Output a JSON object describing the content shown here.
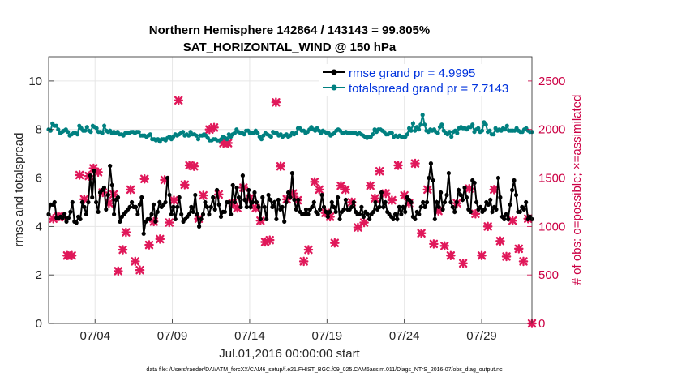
{
  "chart_data": {
    "type": "line",
    "title": "Northern Hemisphere 142864 / 143143 = 99.805%",
    "subtitle": "SAT_HORIZONTAL_WIND @ 150 hPa",
    "xlabel": "Jul.01,2016 00:00:00 start",
    "ylabel": "rmse and totalspread",
    "y2label": "# of obs: o=possible; ×=assimilated",
    "footnote": "data file: /Users/raeder/DAI/ATM_forcXX/CAM6_setup/f.e21.FHIST_BGC.f09_025.CAM6assim.011/Diags_NTrS_2016-07/obs_diag_output.nc",
    "x_range_days": [
      1,
      32.25
    ],
    "x_ticks": [
      {
        "day": 4,
        "label": "07/04"
      },
      {
        "day": 9,
        "label": "07/09"
      },
      {
        "day": 14,
        "label": "07/14"
      },
      {
        "day": 19,
        "label": "07/19"
      },
      {
        "day": 24,
        "label": "07/24"
      },
      {
        "day": 29,
        "label": "07/29"
      }
    ],
    "ylim": [
      0,
      11
    ],
    "y_ticks": [
      "0",
      "2",
      "4",
      "6",
      "8",
      "10"
    ],
    "y2lim": [
      0,
      2750
    ],
    "y2_ticks": [
      "0",
      "500",
      "1000",
      "1500",
      "2000",
      "2500"
    ],
    "legend": [
      {
        "name": "rmse grand pr = 4.9995",
        "color": "#000000"
      },
      {
        "name": "totalspread grand pr = 7.7143",
        "color": "#008080"
      }
    ],
    "series": [
      {
        "name": "rmse",
        "axis": "left",
        "color": "#000000",
        "values": [
          4.5,
          4.9,
          4.9,
          5.0,
          4.35,
          4.35,
          4.4,
          4.35,
          4.5,
          4.2,
          4.35,
          4.6,
          5.0,
          4.2,
          4.15,
          4.4,
          4.3,
          5.0,
          4.8,
          4.5,
          5.0,
          6.1,
          5.2,
          6.3,
          5.0,
          4.6,
          5.4,
          5.5,
          5.6,
          4.7,
          5.3,
          6.5,
          5.7,
          4.5,
          5.1,
          5.2,
          4.2,
          4.4,
          4.5,
          4.6,
          4.7,
          4.8,
          5.0,
          4.8,
          4.8,
          4.5,
          4.9,
          5.2,
          3.7,
          4.2,
          4.3,
          4.3,
          4.5,
          4.9,
          4.2,
          4.6,
          5.0,
          4.8,
          4.9,
          5.0,
          6.0,
          5.3,
          4.5,
          4.8,
          4.3,
          4.8,
          5.2,
          4.5,
          4.2,
          4.3,
          4.4,
          4.5,
          4.8,
          4.6,
          5.3,
          4.5,
          4.0,
          4.3,
          4.5,
          5.0,
          4.8,
          4.5,
          4.8,
          5.2,
          4.7,
          5.5,
          4.9,
          4.4,
          4.6,
          4.6,
          5.0,
          5.0,
          4.5,
          5.7,
          5.0,
          5.6,
          5.2,
          4.8,
          6.1,
          5.1,
          4.8,
          5.5,
          4.8,
          5.0,
          5.4,
          5.0,
          4.8,
          4.3,
          5.2,
          4.8,
          4.3,
          5.3,
          5.1,
          4.8,
          5.0,
          4.3,
          5.1,
          4.7,
          4.8,
          4.2,
          5.0,
          5.4,
          5.2,
          6.2,
          5.1,
          4.7,
          5.1,
          4.6,
          4.5,
          4.5,
          4.7,
          4.5,
          4.7,
          4.8,
          5.0,
          4.6,
          4.5,
          4.7,
          5.3,
          4.8,
          4.6,
          4.4,
          4.6,
          5.0,
          4.8,
          4.6,
          5.2,
          4.3,
          4.6,
          4.7,
          5.1,
          4.7,
          4.7,
          4.8,
          5.0,
          4.6,
          4.5,
          4.5,
          4.8,
          4.4,
          4.6,
          4.5,
          4.3,
          4.5,
          4.6,
          5.0,
          4.7,
          4.8,
          5.4,
          4.8,
          5.0,
          4.6,
          4.5,
          4.4,
          4.3,
          4.5,
          4.3,
          4.8,
          4.5,
          4.8,
          4.6,
          5.2,
          5.1,
          5.0,
          4.4,
          4.3,
          4.6,
          4.5,
          4.8,
          5.0,
          4.8,
          5.0,
          6.0,
          6.6,
          5.9,
          4.3,
          5.0,
          4.8,
          5.4,
          4.7,
          5.0,
          5.3,
          6.2,
          5.0,
          4.8,
          4.6,
          5.0,
          5.5,
          5.3,
          5.1,
          5.6,
          5.2,
          4.7,
          4.6,
          5.9,
          5.8,
          5.0,
          4.7,
          4.8,
          4.6,
          4.7,
          5.0,
          4.9,
          5.1,
          4.6,
          4.8,
          4.7,
          6.0,
          5.2,
          4.4,
          4.3,
          4.5,
          4.3,
          4.9,
          5.5,
          5.9,
          5.3,
          4.6,
          4.6,
          4.8,
          4.7,
          5.0,
          4.3,
          4.4,
          4.3
        ]
      },
      {
        "name": "totalspread",
        "axis": "left",
        "color": "#008080",
        "values": [
          8.0,
          7.95,
          8.25,
          8.15,
          8.15,
          8.0,
          7.85,
          7.9,
          7.95,
          8.0,
          7.9,
          7.75,
          7.8,
          7.85,
          7.85,
          7.8,
          8.15,
          8.05,
          7.95,
          7.95,
          8.1,
          7.95,
          7.9,
          8.15,
          8.1,
          8.05,
          7.9,
          7.9,
          7.85,
          8.15,
          7.95,
          7.9,
          7.95,
          7.85,
          7.9,
          7.85,
          7.9,
          7.8,
          7.8,
          7.75,
          7.85,
          7.85,
          7.85,
          7.9,
          7.9,
          7.85,
          7.9,
          7.9,
          7.75,
          7.75,
          7.75,
          7.7,
          7.75,
          7.8,
          7.6,
          7.6,
          7.55,
          7.6,
          7.5,
          7.6,
          7.6,
          7.55,
          7.65,
          7.7,
          7.6,
          7.7,
          7.8,
          7.75,
          7.8,
          7.85,
          7.9,
          7.75,
          7.8,
          7.75,
          7.9,
          7.8,
          7.8,
          7.75,
          7.6,
          7.75,
          7.75,
          7.8,
          7.75,
          7.65,
          7.55,
          7.55,
          7.6,
          7.6,
          7.55,
          7.55,
          7.6,
          7.7,
          7.65,
          7.6,
          7.8,
          7.7,
          7.8,
          7.85,
          8.0,
          7.9,
          7.85,
          7.85,
          7.8,
          7.95,
          7.95,
          7.85,
          7.85,
          7.85,
          7.95,
          7.85,
          7.7,
          7.6,
          7.75,
          7.85,
          7.8,
          7.75,
          7.7,
          7.9,
          7.85,
          7.85,
          7.75,
          7.8,
          7.7,
          7.75,
          7.8,
          7.7,
          7.75,
          7.85,
          7.8,
          7.85,
          8.05,
          8.05,
          7.95,
          7.95,
          7.85,
          7.9,
          8.0,
          8.1,
          8.0,
          7.95,
          8.05,
          7.95,
          7.85,
          7.95,
          7.9,
          7.85,
          7.85,
          7.75,
          7.8,
          7.85,
          7.95,
          8.0,
          7.95,
          7.85,
          7.85,
          7.9,
          7.85,
          7.85,
          7.85,
          7.85,
          7.85,
          7.8,
          7.85,
          7.8,
          7.75,
          7.7,
          7.65,
          7.7,
          7.7,
          7.8,
          8.0,
          7.9,
          8.0,
          8.0,
          7.95,
          7.9,
          7.8,
          7.8,
          7.85,
          7.85,
          7.7,
          7.75,
          7.7,
          7.75,
          7.7,
          7.7,
          7.7,
          7.8,
          8.05,
          7.95,
          8.25,
          7.95,
          8.1,
          8.0,
          8.2,
          8.6,
          8.2,
          7.95,
          7.9,
          8.0,
          7.95,
          8.0,
          7.9,
          7.85,
          8.1,
          8.2,
          7.95,
          7.85,
          7.8,
          7.9,
          7.7,
          7.9,
          7.95,
          7.85,
          8.05,
          8.1,
          8.05,
          8.05,
          8.0,
          8.1,
          8.1,
          8.2,
          7.9,
          8.0,
          8.05,
          7.9,
          7.95,
          8.3,
          8.2,
          7.9,
          7.95,
          7.8,
          7.8,
          8.05,
          7.95,
          8.0,
          7.95,
          8.05,
          8.0,
          8.15,
          7.95,
          7.95,
          7.95,
          7.95,
          8.05,
          7.95,
          7.9,
          7.9,
          8.0,
          8.05,
          7.95,
          7.9,
          7.9
        ]
      },
      {
        "name": "# of obs (assimilated)",
        "axis": "right",
        "color": "#e0185a",
        "points": [
          [
            1.3,
            1080
          ],
          [
            1.6,
            1100
          ],
          [
            1.9,
            1100
          ],
          [
            2.2,
            700
          ],
          [
            2.5,
            700
          ],
          [
            3.0,
            1530
          ],
          [
            3.3,
            1280
          ],
          [
            3.6,
            1520
          ],
          [
            3.9,
            1600
          ],
          [
            4.2,
            1560
          ],
          [
            4.5,
            1350
          ],
          [
            4.9,
            1240
          ],
          [
            5.2,
            1330
          ],
          [
            5.5,
            540
          ],
          [
            5.8,
            760
          ],
          [
            6.0,
            940
          ],
          [
            6.3,
            1380
          ],
          [
            6.6,
            640
          ],
          [
            6.9,
            550
          ],
          [
            7.2,
            1490
          ],
          [
            7.5,
            810
          ],
          [
            7.8,
            1050
          ],
          [
            8.2,
            870
          ],
          [
            8.5,
            1480
          ],
          [
            8.8,
            1040
          ],
          [
            9.1,
            1270
          ],
          [
            9.4,
            2300
          ],
          [
            9.8,
            1430
          ],
          [
            10.1,
            1630
          ],
          [
            10.4,
            1620
          ],
          [
            10.7,
            1080
          ],
          [
            11.0,
            1320
          ],
          [
            11.4,
            2000
          ],
          [
            11.7,
            2020
          ],
          [
            12.0,
            1330
          ],
          [
            12.3,
            1860
          ],
          [
            12.6,
            1860
          ],
          [
            12.9,
            1240
          ],
          [
            13.2,
            1190
          ],
          [
            13.6,
            1400
          ],
          [
            14.0,
            1290
          ],
          [
            14.4,
            1190
          ],
          [
            14.7,
            1060
          ],
          [
            15.0,
            840
          ],
          [
            15.3,
            860
          ],
          [
            15.7,
            2280
          ],
          [
            16.0,
            1620
          ],
          [
            16.4,
            1280
          ],
          [
            16.8,
            1340
          ],
          [
            17.1,
            1270
          ],
          [
            17.5,
            640
          ],
          [
            17.8,
            760
          ],
          [
            18.2,
            1460
          ],
          [
            18.5,
            1380
          ],
          [
            18.9,
            1140
          ],
          [
            19.2,
            1100
          ],
          [
            19.5,
            830
          ],
          [
            19.9,
            1420
          ],
          [
            20.2,
            1380
          ],
          [
            20.6,
            1250
          ],
          [
            21.0,
            990
          ],
          [
            21.4,
            1040
          ],
          [
            21.8,
            1420
          ],
          [
            22.1,
            1290
          ],
          [
            22.4,
            1570
          ],
          [
            22.8,
            1340
          ],
          [
            23.2,
            1270
          ],
          [
            23.6,
            1630
          ],
          [
            24.0,
            1320
          ],
          [
            24.3,
            1240
          ],
          [
            24.7,
            1650
          ],
          [
            25.1,
            930
          ],
          [
            25.5,
            1380
          ],
          [
            25.9,
            820
          ],
          [
            26.2,
            1160
          ],
          [
            26.6,
            800
          ],
          [
            27.0,
            700
          ],
          [
            27.4,
            1240
          ],
          [
            27.8,
            620
          ],
          [
            28.2,
            1390
          ],
          [
            28.6,
            1130
          ],
          [
            29.0,
            700
          ],
          [
            29.4,
            1000
          ],
          [
            29.8,
            1380
          ],
          [
            30.2,
            850
          ],
          [
            30.6,
            690
          ],
          [
            31.0,
            1060
          ],
          [
            31.4,
            770
          ],
          [
            31.7,
            640
          ],
          [
            32.0,
            1080
          ],
          [
            32.25,
            0
          ]
        ]
      }
    ]
  }
}
